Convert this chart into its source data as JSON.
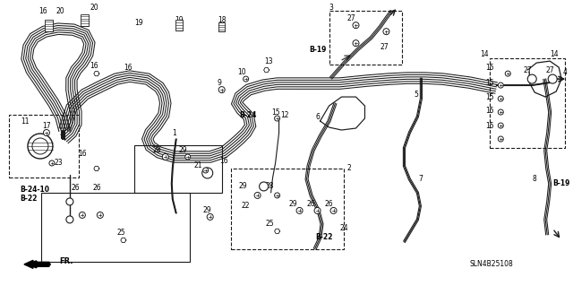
{
  "bg_color": "#ffffff",
  "line_color": "#1a1a1a",
  "part_number": "SLN4B25108",
  "fig_width": 6.4,
  "fig_height": 3.19,
  "dpi": 100,
  "labels": {
    "fr": "FR.",
    "b24": "B-24",
    "b19": "B-19",
    "b22": "B-22",
    "b24_10": "B-24-10"
  }
}
